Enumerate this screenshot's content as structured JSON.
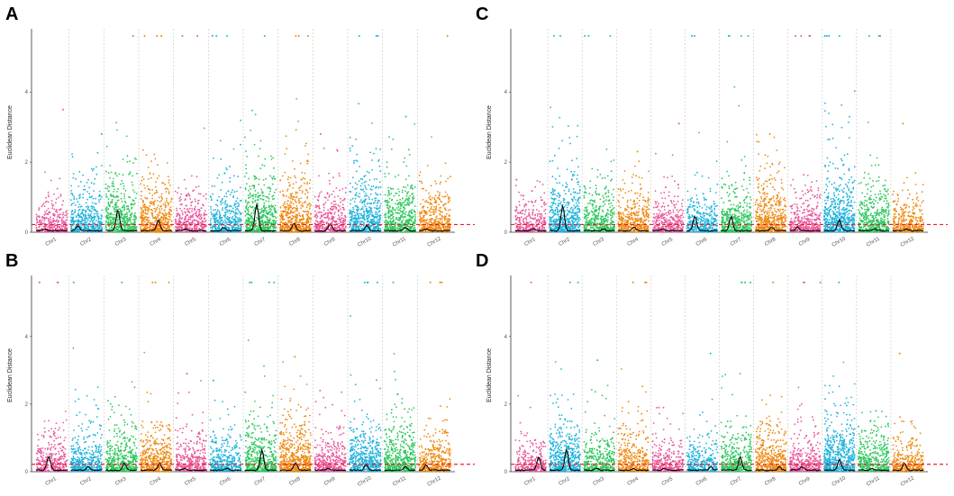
{
  "chart_data": [
    {
      "panel": "A",
      "type": "scatter",
      "subtype": "manhattan",
      "ylabel": "Euclidean Distance",
      "xlabel": "",
      "categories": [
        "Chr1",
        "Chr2",
        "Chr3",
        "Chr4",
        "Chr5",
        "Chr6",
        "Chr7",
        "Chr8",
        "Chr9",
        "Chr10",
        "Chr11",
        "Chr12"
      ],
      "yticks": [
        0,
        2,
        4
      ],
      "ylim": [
        0,
        5.7
      ],
      "threshold": 0.22,
      "colors": [
        "#E8579B",
        "#1FB3DC",
        "#2EC85E",
        "#EE8A12",
        "#E8579B",
        "#1FB3DC",
        "#2EC85E",
        "#EE8A12",
        "#E8579B",
        "#1FB3DC",
        "#2EC85E",
        "#EE8A12"
      ],
      "peak_by_chr": [
        3.5,
        2.8,
        5.6,
        5.6,
        5.6,
        5.6,
        5.6,
        5.6,
        2.8,
        5.6,
        3.3,
        5.6
      ],
      "density_by_chr": [
        0.35,
        0.7,
        0.8,
        0.8,
        0.45,
        0.6,
        0.9,
        0.9,
        0.5,
        0.9,
        0.8,
        0.6
      ],
      "smooth_peak_by_chr": [
        0.05,
        0.15,
        0.6,
        0.3,
        0.05,
        0.1,
        0.75,
        0.2,
        0.2,
        0.15,
        0.1,
        0.05
      ]
    },
    {
      "panel": "B",
      "type": "scatter",
      "subtype": "manhattan",
      "ylabel": "Euclidean Distance",
      "xlabel": "",
      "categories": [
        "Chr1",
        "Chr2",
        "Chr3",
        "Chr4",
        "Chr5",
        "Chr6",
        "Chr7",
        "Chr8",
        "Chr9",
        "Chr10",
        "Chr11",
        "Chr12"
      ],
      "yticks": [
        0,
        2,
        4
      ],
      "ylim": [
        0,
        5.7
      ],
      "threshold": 0.22,
      "colors": [
        "#E8579B",
        "#1FB3DC",
        "#2EC85E",
        "#EE8A12",
        "#E8579B",
        "#1FB3DC",
        "#2EC85E",
        "#EE8A12",
        "#E8579B",
        "#1FB3DC",
        "#2EC85E",
        "#EE8A12"
      ],
      "peak_by_chr": [
        5.6,
        5.6,
        5.6,
        5.6,
        2.9,
        2.7,
        5.6,
        3.4,
        2.4,
        5.6,
        5.6,
        5.6
      ],
      "density_by_chr": [
        0.4,
        0.6,
        0.7,
        0.7,
        0.45,
        0.5,
        0.8,
        0.9,
        0.5,
        0.85,
        0.8,
        0.5
      ],
      "smooth_peak_by_chr": [
        0.4,
        0.1,
        0.2,
        0.2,
        0.05,
        0.05,
        0.6,
        0.2,
        0.05,
        0.15,
        0.1,
        0.15
      ]
    },
    {
      "panel": "C",
      "type": "scatter",
      "subtype": "manhattan",
      "ylabel": "Euclidean Distance",
      "xlabel": "",
      "categories": [
        "Chr1",
        "Chr2",
        "Chr3",
        "Chr4",
        "Chr5",
        "Chr6",
        "Chr7",
        "Chr8",
        "Chr9",
        "Chr10",
        "Chr11",
        "Chr12"
      ],
      "yticks": [
        0,
        2,
        4
      ],
      "ylim": [
        0,
        5.7
      ],
      "threshold": 0.22,
      "colors": [
        "#E8579B",
        "#1FB3DC",
        "#2EC85E",
        "#EE8A12",
        "#E8579B",
        "#1FB3DC",
        "#2EC85E",
        "#EE8A12",
        "#E8579B",
        "#1FB3DC",
        "#2EC85E",
        "#EE8A12"
      ],
      "peak_by_chr": [
        1.5,
        5.6,
        5.6,
        2.3,
        3.1,
        5.6,
        5.6,
        2.8,
        5.6,
        5.6,
        5.6,
        3.1
      ],
      "density_by_chr": [
        0.35,
        0.9,
        0.6,
        0.6,
        0.45,
        0.5,
        0.7,
        0.85,
        0.5,
        1.0,
        0.7,
        0.4
      ],
      "smooth_peak_by_chr": [
        0.05,
        0.7,
        0.05,
        0.1,
        0.05,
        0.4,
        0.4,
        0.1,
        0.1,
        0.3,
        0.05,
        0.05
      ]
    },
    {
      "panel": "D",
      "type": "scatter",
      "subtype": "manhattan",
      "ylabel": "Euclidean Distance",
      "xlabel": "",
      "categories": [
        "Chr1",
        "Chr2",
        "Chr3",
        "Chr4",
        "Chr5",
        "Chr6",
        "Chr7",
        "Chr8",
        "Chr9",
        "Chr10",
        "Chr11",
        "Chr12"
      ],
      "yticks": [
        0,
        2,
        4
      ],
      "ylim": [
        0,
        5.7
      ],
      "threshold": 0.22,
      "colors": [
        "#E8579B",
        "#1FB3DC",
        "#2EC85E",
        "#EE8A12",
        "#E8579B",
        "#1FB3DC",
        "#2EC85E",
        "#EE8A12",
        "#E8579B",
        "#1FB3DC",
        "#2EC85E",
        "#EE8A12"
      ],
      "peak_by_chr": [
        5.6,
        5.6,
        3.3,
        5.6,
        1.9,
        3.5,
        5.6,
        5.6,
        5.6,
        5.6,
        1.8,
        3.5
      ],
      "density_by_chr": [
        0.3,
        0.85,
        0.5,
        0.5,
        0.35,
        0.4,
        0.6,
        0.7,
        0.45,
        1.0,
        0.6,
        0.4
      ],
      "smooth_peak_by_chr": [
        0.4,
        0.6,
        0.05,
        0.05,
        0.05,
        0.1,
        0.4,
        0.1,
        0.1,
        0.3,
        0.05,
        0.2
      ]
    }
  ]
}
